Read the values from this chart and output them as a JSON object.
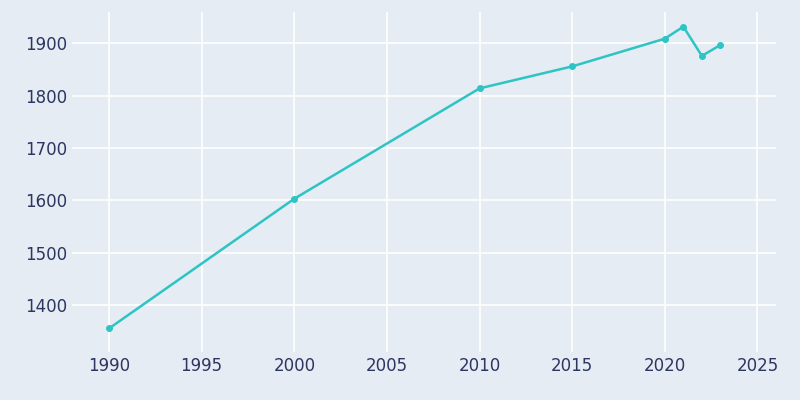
{
  "years": [
    1990,
    2000,
    2010,
    2015,
    2020,
    2021,
    2022,
    2023
  ],
  "population": [
    1355,
    1603,
    1814,
    1856,
    1909,
    1932,
    1876,
    1897
  ],
  "line_color": "#2ec4c4",
  "background_color": "#e5ecf3",
  "text_color": "#2d3561",
  "xlim": [
    1988,
    2026
  ],
  "ylim": [
    1310,
    1960
  ],
  "xticks": [
    1990,
    1995,
    2000,
    2005,
    2010,
    2015,
    2020,
    2025
  ],
  "yticks": [
    1400,
    1500,
    1600,
    1700,
    1800,
    1900
  ],
  "linewidth": 1.8,
  "markersize": 4,
  "grid_color": "#ccd8e4",
  "figsize": [
    8.0,
    4.0
  ],
  "dpi": 100,
  "tick_fontsize": 12
}
